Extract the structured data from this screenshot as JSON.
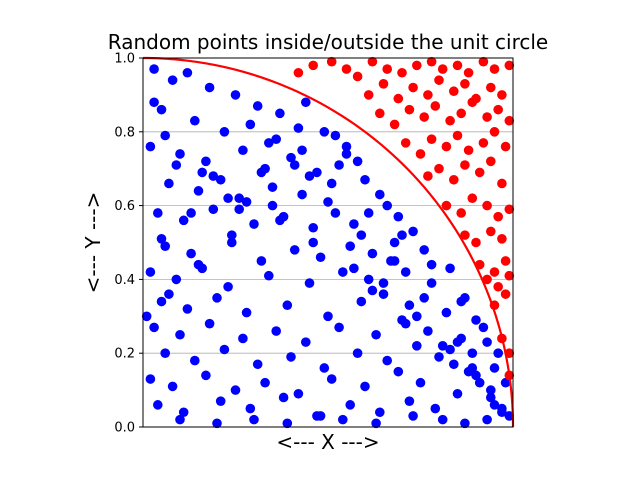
{
  "chart_data": {
    "type": "scatter",
    "title": "Random points inside/outside the unit circle",
    "xlabel": "<--- X --->",
    "ylabel": "<--- Y --->",
    "xlim": [
      0.0,
      1.0
    ],
    "ylim": [
      0.0,
      1.0
    ],
    "x_ticks": [],
    "y_ticks": [
      "0.0",
      "0.2",
      "0.4",
      "0.6",
      "0.8",
      "1.0"
    ],
    "y_tick_values": [
      0.0,
      0.2,
      0.4,
      0.6,
      0.8,
      1.0
    ],
    "grid": "horizontal",
    "curve": {
      "name": "unit circle",
      "color": "#ff0000"
    },
    "series": [
      {
        "color": "#0000ff",
        "x": [
          0.03,
          0.08,
          0.12,
          0.18,
          0.25,
          0.31,
          0.37,
          0.44,
          0.05,
          0.14,
          0.22,
          0.29,
          0.36,
          0.42,
          0.49,
          0.55,
          0.02,
          0.1,
          0.17,
          0.27,
          0.33,
          0.4,
          0.47,
          0.53,
          0.58,
          0.07,
          0.15,
          0.21,
          0.26,
          0.35,
          0.43,
          0.51,
          0.6,
          0.64,
          0.04,
          0.11,
          0.19,
          0.3,
          0.38,
          0.46,
          0.52,
          0.57,
          0.66,
          0.69,
          0.06,
          0.13,
          0.24,
          0.32,
          0.41,
          0.48,
          0.56,
          0.62,
          0.68,
          0.73,
          0.02,
          0.09,
          0.16,
          0.23,
          0.34,
          0.45,
          0.54,
          0.61,
          0.67,
          0.71,
          0.76,
          0.05,
          0.12,
          0.2,
          0.28,
          0.39,
          0.5,
          0.59,
          0.65,
          0.72,
          0.78,
          0.83,
          0.03,
          0.1,
          0.18,
          0.27,
          0.36,
          0.44,
          0.53,
          0.63,
          0.7,
          0.77,
          0.82,
          0.87,
          0.06,
          0.14,
          0.22,
          0.31,
          0.4,
          0.49,
          0.58,
          0.66,
          0.74,
          0.8,
          0.86,
          0.9,
          0.02,
          0.08,
          0.17,
          0.25,
          0.33,
          0.42,
          0.51,
          0.6,
          0.69,
          0.75,
          0.84,
          0.89,
          0.93,
          0.04,
          0.11,
          0.21,
          0.29,
          0.38,
          0.47,
          0.56,
          0.64,
          0.72,
          0.79,
          0.85,
          0.91,
          0.95,
          0.01,
          0.07,
          0.15,
          0.24,
          0.35,
          0.45,
          0.55,
          0.62,
          0.71,
          0.81,
          0.88,
          0.94,
          0.97,
          0.05,
          0.13,
          0.23,
          0.32,
          0.43,
          0.52,
          0.61,
          0.7,
          0.78,
          0.86,
          0.92,
          0.96,
          0.98,
          0.03,
          0.09,
          0.19,
          0.28,
          0.37,
          0.46,
          0.57,
          0.65,
          0.74,
          0.83,
          0.89,
          0.94,
          0.99,
          0.06,
          0.16,
          0.26,
          0.34,
          0.41,
          0.5,
          0.59,
          0.68,
          0.76,
          0.85,
          0.9,
          0.95,
          0.1,
          0.2,
          0.3,
          0.39,
          0.48,
          0.54,
          0.63,
          0.73,
          0.81,
          0.87,
          0.93,
          0.97
        ],
        "y": [
          0.97,
          0.94,
          0.96,
          0.92,
          0.9,
          0.87,
          0.85,
          0.88,
          0.86,
          0.83,
          0.8,
          0.82,
          0.78,
          0.81,
          0.8,
          0.76,
          0.76,
          0.74,
          0.72,
          0.75,
          0.7,
          0.73,
          0.69,
          0.71,
          0.72,
          0.66,
          0.64,
          0.67,
          0.62,
          0.65,
          0.63,
          0.66,
          0.67,
          0.63,
          0.58,
          0.56,
          0.59,
          0.55,
          0.57,
          0.54,
          0.58,
          0.55,
          0.6,
          0.57,
          0.49,
          0.47,
          0.5,
          0.45,
          0.48,
          0.46,
          0.49,
          0.47,
          0.5,
          0.53,
          0.42,
          0.4,
          0.43,
          0.38,
          0.41,
          0.39,
          0.42,
          0.4,
          0.45,
          0.42,
          0.48,
          0.34,
          0.32,
          0.35,
          0.31,
          0.33,
          0.3,
          0.34,
          0.36,
          0.33,
          0.39,
          0.43,
          0.27,
          0.25,
          0.28,
          0.24,
          0.26,
          0.23,
          0.27,
          0.25,
          0.29,
          0.26,
          0.31,
          0.35,
          0.2,
          0.18,
          0.21,
          0.17,
          0.19,
          0.16,
          0.2,
          0.18,
          0.22,
          0.19,
          0.24,
          0.29,
          0.13,
          0.11,
          0.14,
          0.1,
          0.12,
          0.09,
          0.13,
          0.11,
          0.15,
          0.12,
          0.17,
          0.2,
          0.23,
          0.06,
          0.04,
          0.07,
          0.05,
          0.08,
          0.03,
          0.06,
          0.04,
          0.07,
          0.05,
          0.09,
          0.12,
          0.16,
          0.3,
          0.36,
          0.44,
          0.52,
          0.6,
          0.68,
          0.74,
          0.37,
          0.28,
          0.22,
          0.15,
          0.1,
          0.05,
          0.51,
          0.58,
          0.62,
          0.69,
          0.75,
          0.79,
          0.58,
          0.52,
          0.44,
          0.34,
          0.27,
          0.2,
          0.12,
          0.88,
          0.71,
          0.68,
          0.61,
          0.56,
          0.5,
          0.43,
          0.39,
          0.3,
          0.21,
          0.16,
          0.08,
          0.03,
          0.79,
          0.69,
          0.59,
          0.77,
          0.71,
          0.61,
          0.52,
          0.45,
          0.35,
          0.23,
          0.14,
          0.06,
          0.02,
          0.01,
          0.02,
          0.01,
          0.03,
          0.02,
          0.01,
          0.03,
          0.02,
          0.01,
          0.02,
          0.04
        ]
      },
      {
        "color": "#ff0000",
        "x": [
          0.42,
          0.46,
          0.51,
          0.55,
          0.58,
          0.62,
          0.66,
          0.7,
          0.74,
          0.78,
          0.81,
          0.85,
          0.88,
          0.92,
          0.95,
          0.99,
          0.61,
          0.65,
          0.69,
          0.73,
          0.77,
          0.8,
          0.84,
          0.87,
          0.9,
          0.94,
          0.97,
          0.64,
          0.68,
          0.72,
          0.76,
          0.79,
          0.83,
          0.86,
          0.89,
          0.93,
          0.96,
          0.99,
          0.71,
          0.75,
          0.78,
          0.82,
          0.85,
          0.88,
          0.92,
          0.95,
          0.98,
          0.77,
          0.8,
          0.84,
          0.87,
          0.91,
          0.94,
          0.97,
          0.82,
          0.86,
          0.89,
          0.93,
          0.96,
          0.99,
          0.87,
          0.9,
          0.94,
          0.97,
          0.91,
          0.95,
          0.98,
          0.93,
          0.96,
          0.99,
          0.95,
          0.98,
          0.97,
          0.99,
          0.99
        ],
        "y": [
          0.96,
          0.98,
          0.99,
          0.97,
          0.95,
          0.99,
          0.97,
          0.96,
          0.98,
          0.99,
          0.97,
          0.98,
          0.96,
          0.99,
          0.97,
          0.98,
          0.9,
          0.93,
          0.89,
          0.92,
          0.9,
          0.94,
          0.91,
          0.93,
          0.89,
          0.92,
          0.9,
          0.85,
          0.82,
          0.86,
          0.84,
          0.87,
          0.83,
          0.85,
          0.88,
          0.84,
          0.86,
          0.83,
          0.77,
          0.74,
          0.78,
          0.76,
          0.79,
          0.75,
          0.77,
          0.8,
          0.76,
          0.68,
          0.7,
          0.67,
          0.71,
          0.69,
          0.72,
          0.66,
          0.6,
          0.58,
          0.62,
          0.6,
          0.57,
          0.59,
          0.52,
          0.5,
          0.53,
          0.51,
          0.44,
          0.42,
          0.45,
          0.4,
          0.38,
          0.41,
          0.33,
          0.36,
          0.24,
          0.2,
          0.14
        ]
      }
    ]
  }
}
